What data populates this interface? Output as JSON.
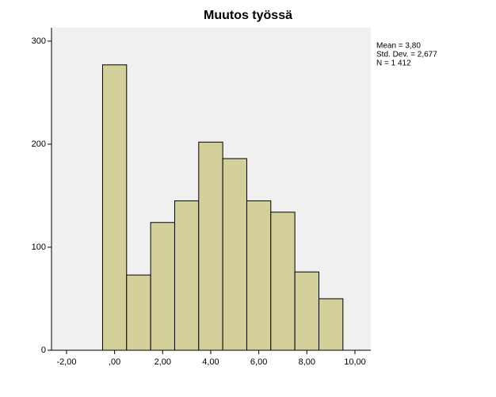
{
  "chart_data": {
    "type": "histogram",
    "title": "Muutos työssä",
    "bins": [
      -0.5,
      0.5,
      1.5,
      2.5,
      3.5,
      4.5,
      5.5,
      6.5,
      7.5,
      8.5,
      9.5
    ],
    "counts": [
      277,
      73,
      124,
      145,
      202,
      186,
      145,
      134,
      76,
      50
    ],
    "color": "#d4d09b",
    "xlim": [
      -2.625,
      10.66
    ],
    "xticks": [
      {
        "value": -2,
        "label": "-2,00"
      },
      {
        "value": 0,
        "label": ",00"
      },
      {
        "value": 2,
        "label": "2,00"
      },
      {
        "value": 4,
        "label": "4,00"
      },
      {
        "value": 6,
        "label": "6,00"
      },
      {
        "value": 8,
        "label": "8,00"
      },
      {
        "value": 10,
        "label": "10,00"
      }
    ],
    "ylim": [
      0,
      313
    ],
    "yticks": [
      0,
      100,
      200,
      300
    ],
    "annotations": [
      "Mean = 3,80",
      "Std. Dev. = 2,677",
      "N = 1 412"
    ]
  }
}
